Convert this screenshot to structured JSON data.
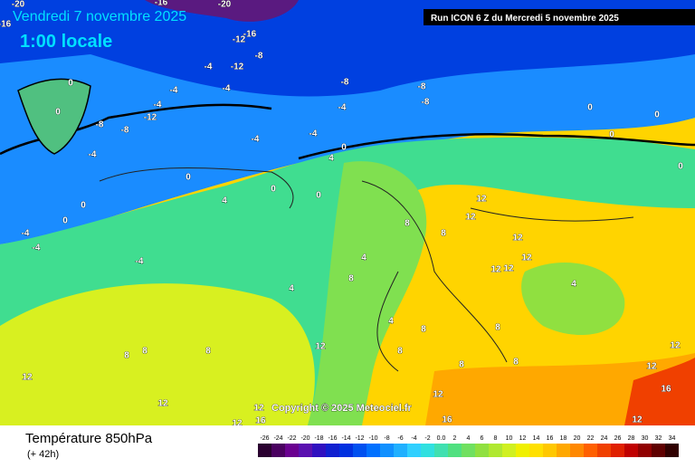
{
  "header": {
    "date": "Vendredi 7 novembre 2025",
    "time": "1:00 locale",
    "run": "Run ICON 6 Z du Mercredi 5 novembre 2025"
  },
  "map": {
    "copyright": "Copyright © 2025 Meteociel.fr",
    "contour_labels": [
      "-20",
      "-16",
      "-16",
      "-20",
      "-12",
      "-16",
      "-12",
      "-4",
      "-8",
      "-8",
      "-8",
      "-8",
      "-4",
      "-4",
      "-4",
      "-8",
      "-8",
      "-12",
      "-4",
      "-4",
      "-4",
      "0",
      "0",
      "-4",
      "0",
      "4",
      "0",
      "0",
      "0",
      "0",
      "0",
      "4",
      "0",
      "0",
      "0",
      "0",
      "-4",
      "-4",
      "-4",
      "4",
      "8",
      "4",
      "8",
      "12",
      "12",
      "8",
      "12",
      "12",
      "12",
      "12",
      "4",
      "8",
      "8",
      "4",
      "8",
      "8",
      "8",
      "12",
      "12",
      "12",
      "12",
      "12",
      "16",
      "12",
      "16",
      "12",
      "16",
      "12",
      "12",
      "8",
      "8",
      "8"
    ]
  },
  "footer": {
    "title": "Température 850hPa",
    "lead": "(+ 42h)"
  },
  "legend": {
    "ticks": [
      "-26",
      "-24",
      "-22",
      "-20",
      "-18",
      "-16",
      "-14",
      "-12",
      "-10",
      "-8",
      "-6",
      "-4",
      "-2",
      "0.0",
      "2",
      "4",
      "6",
      "8",
      "10",
      "12",
      "14",
      "16",
      "18",
      "20",
      "22",
      "24",
      "26",
      "28",
      "30",
      "32",
      "34"
    ],
    "colors": [
      "#2a0030",
      "#4a0060",
      "#6a0090",
      "#5a10b0",
      "#3010c0",
      "#1020d0",
      "#0030e0",
      "#0050f0",
      "#0070ff",
      "#1090ff",
      "#20b0ff",
      "#30d0ff",
      "#30e0e0",
      "#40e0b0",
      "#50e080",
      "#70e060",
      "#90e040",
      "#b0e830",
      "#d0f020",
      "#f0f000",
      "#ffe000",
      "#ffc800",
      "#ffa800",
      "#ff8800",
      "#ff6000",
      "#f04000",
      "#e02000",
      "#c00000",
      "#900000",
      "#600000",
      "#300000"
    ]
  }
}
